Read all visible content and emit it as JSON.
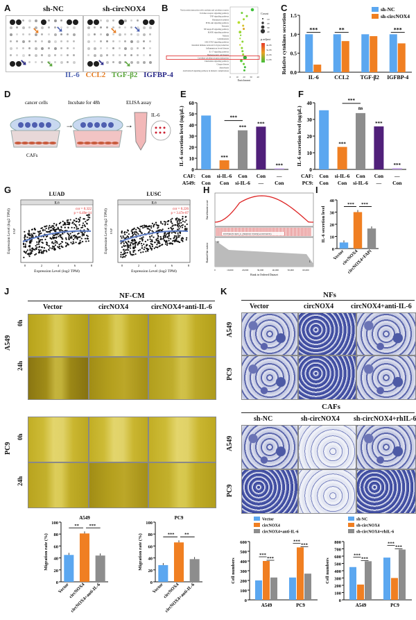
{
  "panels": {
    "A": {
      "label": "A",
      "cond1": "sh-NC",
      "cond2": "sh-circNOX4",
      "legend": [
        {
          "text": "IL-6",
          "color": "#4a5fb0"
        },
        {
          "text": "CCL2",
          "color": "#e57c22"
        },
        {
          "text": "TGF-β2",
          "color": "#5aa63b"
        },
        {
          "text": "IGFBP-4",
          "color": "#2b2b8a"
        }
      ]
    },
    "B": {
      "label": "B",
      "xlabel": "Enrichment",
      "count_title": "Count",
      "padj_title": "p.adjust",
      "padj_ticks": [
        "4e-06",
        "3e-06",
        "2e-06",
        "1e-06"
      ],
      "count_ticks": [
        "10",
        "20",
        "30",
        "40"
      ],
      "terms": [
        "Viral protein interaction with cytokine and cytokine receptor",
        "Toll-like receptor signaling pathway",
        "TNF signaling pathway",
        "Rheumatoid arthritis",
        "PI3K-Akt signaling pathway",
        "Pertussis",
        "NF-kappa B signaling pathway",
        "MAPK signaling pathway",
        "Malaria",
        "Leishmaniasis",
        "JAK-STAT signaling pathway",
        "Intestinal immune network for IgA production",
        "Inflammatory bowel disease",
        "IL-17 signaling pathway",
        "Hematopoietic cell lineage",
        "Cytokine-cytokine receptor interaction",
        "Chemokine signaling pathway",
        "Chagas disease",
        "Amoebiasis",
        "AGE-RAGE signaling pathway in diabetic complications"
      ],
      "x_ticks": [
        "0",
        "10",
        "20",
        "30",
        "40"
      ]
    },
    "C": {
      "label": "C",
      "ylabel": "Relative cytokines secretion"
    },
    "D": {
      "label": "D",
      "step1": "cancer cells",
      "step2": "Incubate for 48h",
      "step3": "ELISA assay",
      "caf": "CAFs",
      "il6": "IL-6"
    },
    "E": {
      "label": "E",
      "ylabel": "IL-6 secretion level (ng/μL)",
      "row1_name": "CAF:",
      "row2_name": "A549:",
      "row1": [
        "Con",
        "si-IL-6",
        "Con",
        "Con",
        "—"
      ],
      "row2": [
        "Con",
        "Con",
        "si-IL-6",
        "—",
        "Con"
      ]
    },
    "F": {
      "label": "F",
      "ylabel": "IL-6 secretion level (ng/μL)",
      "row1_name": "CAF:",
      "row2_name": "PC9:",
      "row1": [
        "Con",
        "si-IL-6",
        "Con",
        "Con",
        "—"
      ],
      "row2": [
        "Con",
        "Con",
        "si-IL-6",
        "—",
        "Con"
      ],
      "ns": "ns"
    },
    "G": {
      "label": "G",
      "luad": "LUAD",
      "lusc": "LUSC",
      "ylabel": "Expression Level (log2 TPM)",
      "xlabel": "Expression Level (log2 TPM)",
      "strip": "IL6",
      "luad_stats": [
        "cor = 0.322",
        "p = 6.49e-14"
      ],
      "lusc_stats": [
        "cor = 0.226",
        "p = 3.47e-07"
      ],
      "fap": "FAP"
    },
    "H": {
      "label": "H",
      "yl1": "Enrichment score",
      "yl2": "Ranked list metric",
      "xl": "Rank in Ordered Dataset",
      "pathway": "INTERLEUKIN_6_PRODUCTION(GO:0032635)",
      "xticks": [
        "0",
        "10,000",
        "20,000",
        "30,000",
        "40,000",
        "50,000",
        "60,000"
      ],
      "H_mark": "H",
      "L_mark": "L"
    },
    "I": {
      "label": "I",
      "ylabel": "IL-6 secretion level",
      "cats": [
        "Vector",
        "circNOX4",
        "circNOX4+FAPi"
      ]
    },
    "J": {
      "label": "J",
      "header": "NF-CM",
      "cols": [
        "Vector",
        "circNOX4",
        "circNOX4+anti-IL-6"
      ],
      "rows": [
        "A549",
        "PC9"
      ],
      "times": [
        "0h",
        "24h"
      ]
    },
    "K": {
      "label": "K",
      "header1": "NFs",
      "header2": "CAFs",
      "cols1": [
        "Vector",
        "circNOX4",
        "circNOX4+anti-IL-6"
      ],
      "cols2": [
        "sh-NC",
        "sh-circNOX4",
        "sh-circNOX4+rhIL-6"
      ],
      "rows": [
        "A549",
        "PC9"
      ]
    },
    "J_bars": {
      "a549_title": "A549",
      "pc9_title": "PC9",
      "ylabel": "Migration rate (%)",
      "cats": [
        "Vector",
        "circNOX4",
        "circNOX4+anti-IL-6"
      ]
    },
    "K_bars": {
      "ylabel": "Cell numbers",
      "groups": [
        "A549",
        "PC9"
      ]
    }
  },
  "chart_data": [
    {
      "type": "bar",
      "id": "C",
      "categories": [
        "IL-6",
        "CCL2",
        "TGF-β2",
        "IGFBP-4"
      ],
      "series": [
        {
          "name": "sh-NC",
          "values": [
            1.0,
            1.0,
            1.0,
            1.0
          ],
          "color": "#5ba7f0"
        },
        {
          "name": "sh-circNOX4",
          "values": [
            0.2,
            0.82,
            0.95,
            0.76
          ],
          "color": "#f07f22"
        }
      ],
      "ylim": [
        0,
        1.5
      ],
      "yticks": [
        0.0,
        0.5,
        1.0,
        1.5
      ],
      "sig": [
        "***",
        "**",
        "",
        "***"
      ]
    },
    {
      "type": "bar",
      "id": "E",
      "values": [
        48.5,
        8.2,
        35.2,
        38.5,
        1.0
      ],
      "colors": [
        "#5ba7f0",
        "#f07f22",
        "#8d8d8d",
        "#50207a",
        "#c6a7e6"
      ],
      "ylim": [
        0,
        60
      ],
      "yticks": [
        0,
        10,
        20,
        30,
        40,
        50,
        60
      ],
      "sig": [
        "",
        "***",
        "***",
        "***",
        "***"
      ],
      "bracket": "***"
    },
    {
      "type": "bar",
      "id": "F",
      "values": [
        35.5,
        13.5,
        33.8,
        25.8,
        0.8
      ],
      "colors": [
        "#5ba7f0",
        "#f07f22",
        "#8d8d8d",
        "#50207a",
        "#c6a7e6"
      ],
      "ylim": [
        0,
        40
      ],
      "yticks": [
        0,
        10,
        20,
        30,
        40
      ],
      "sig": [
        "",
        "***",
        "",
        "***",
        "***"
      ],
      "bracket": "***"
    },
    {
      "type": "bar",
      "id": "I",
      "categories": [
        "Vector",
        "circNOX4",
        "circNOX4+FAPi"
      ],
      "values": [
        5,
        30,
        16.5
      ],
      "colors": [
        "#5ba7f0",
        "#f07f22",
        "#8d8d8d"
      ],
      "ylim": [
        0,
        40
      ],
      "yticks": [
        0,
        10,
        20,
        30,
        40
      ],
      "sig": [
        "***",
        "***"
      ]
    },
    {
      "type": "bar",
      "id": "J-A549",
      "categories": [
        "Vector",
        "circNOX4",
        "circNOX4+anti-IL-6"
      ],
      "values": [
        45,
        81,
        44
      ],
      "colors": [
        "#5ba7f0",
        "#f07f22",
        "#8d8d8d"
      ],
      "ylim": [
        0,
        100
      ],
      "yticks": [
        0,
        20,
        40,
        60,
        80,
        100
      ],
      "sig": [
        "**",
        "***"
      ]
    },
    {
      "type": "bar",
      "id": "J-PC9",
      "categories": [
        "Vector",
        "circNOX4",
        "circNOX4+anti-IL-6"
      ],
      "values": [
        28,
        66,
        38
      ],
      "colors": [
        "#5ba7f0",
        "#f07f22",
        "#8d8d8d"
      ],
      "ylim": [
        0,
        100
      ],
      "yticks": [
        0,
        20,
        40,
        60,
        80,
        100
      ],
      "sig": [
        "***",
        "**"
      ]
    },
    {
      "type": "bar",
      "id": "K-NF",
      "categories": [
        "A549",
        "PC9"
      ],
      "series": [
        {
          "name": "Vector",
          "values": [
            200,
            230
          ],
          "color": "#5ba7f0"
        },
        {
          "name": "circNOX4",
          "values": [
            400,
            540
          ],
          "color": "#f07f22"
        },
        {
          "name": "circNOX4+anti-IL-6",
          "values": [
            230,
            270
          ],
          "color": "#8d8d8d"
        }
      ],
      "ylim": [
        0,
        600
      ],
      "yticks": [
        0,
        100,
        200,
        300,
        400,
        500,
        600
      ],
      "sig": [
        "***",
        "***",
        "***",
        "***"
      ]
    },
    {
      "type": "bar",
      "id": "K-CAF",
      "categories": [
        "A549",
        "PC9"
      ],
      "series": [
        {
          "name": "sh-NC",
          "values": [
            450,
            580
          ],
          "color": "#5ba7f0"
        },
        {
          "name": "sh-circNOX4",
          "values": [
            210,
            300
          ],
          "color": "#f07f22"
        },
        {
          "name": "sh-circNOX4+rhIL-6",
          "values": [
            530,
            690
          ],
          "color": "#8d8d8d"
        }
      ],
      "ylim": [
        0,
        800
      ],
      "yticks": [
        0,
        100,
        200,
        300,
        400,
        500,
        600,
        700,
        800
      ],
      "sig": [
        "***",
        "***",
        "***",
        "***"
      ]
    }
  ]
}
